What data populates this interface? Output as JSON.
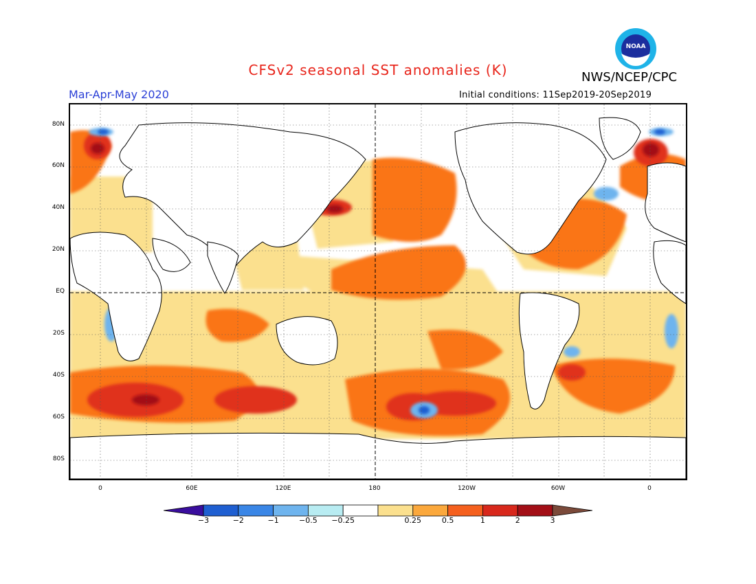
{
  "title": "CFSv2 seasonal SST anomalies (K)",
  "agency": "NWS/NCEP/CPC",
  "logo_text": "NOAA",
  "season": "Mar-Apr-May 2020",
  "initial_conditions": "Initial conditions: 11Sep2019-20Sep2019",
  "lat_labels": [
    "80N",
    "60N",
    "40N",
    "20N",
    "EQ",
    "20S",
    "40S",
    "60S",
    "80S"
  ],
  "lon_labels": [
    "0",
    "60E",
    "120E",
    "180",
    "120W",
    "60W",
    "0"
  ],
  "colorbar": {
    "labels": [
      "-3",
      "-2",
      "-1",
      "-0.5",
      "-0.25",
      "0.25",
      "0.5",
      "1",
      "2",
      "3"
    ],
    "colors": [
      "#3a0e9e",
      "#1f5fd1",
      "#3a86e6",
      "#6eb4ee",
      "#b8ecf2",
      "#ffffff",
      "#fbe08e",
      "#fba83c",
      "#f5601e",
      "#d8281c",
      "#a30f17",
      "#7b4a3a"
    ]
  },
  "palette": {
    "ocean_neutral": "#ffffff",
    "warm_light": "#fbe08e",
    "warm_mid": "#fa6d10",
    "warm_strong": "#e3301c",
    "warm_extreme": "#a30f17",
    "cool_light": "#b8ecf2",
    "cool_mid": "#6eb4ee",
    "cool_strong": "#1f5fd1",
    "land_outline": "#000000",
    "title_red": "#e8251b",
    "season_blue": "#2a3fd6"
  }
}
